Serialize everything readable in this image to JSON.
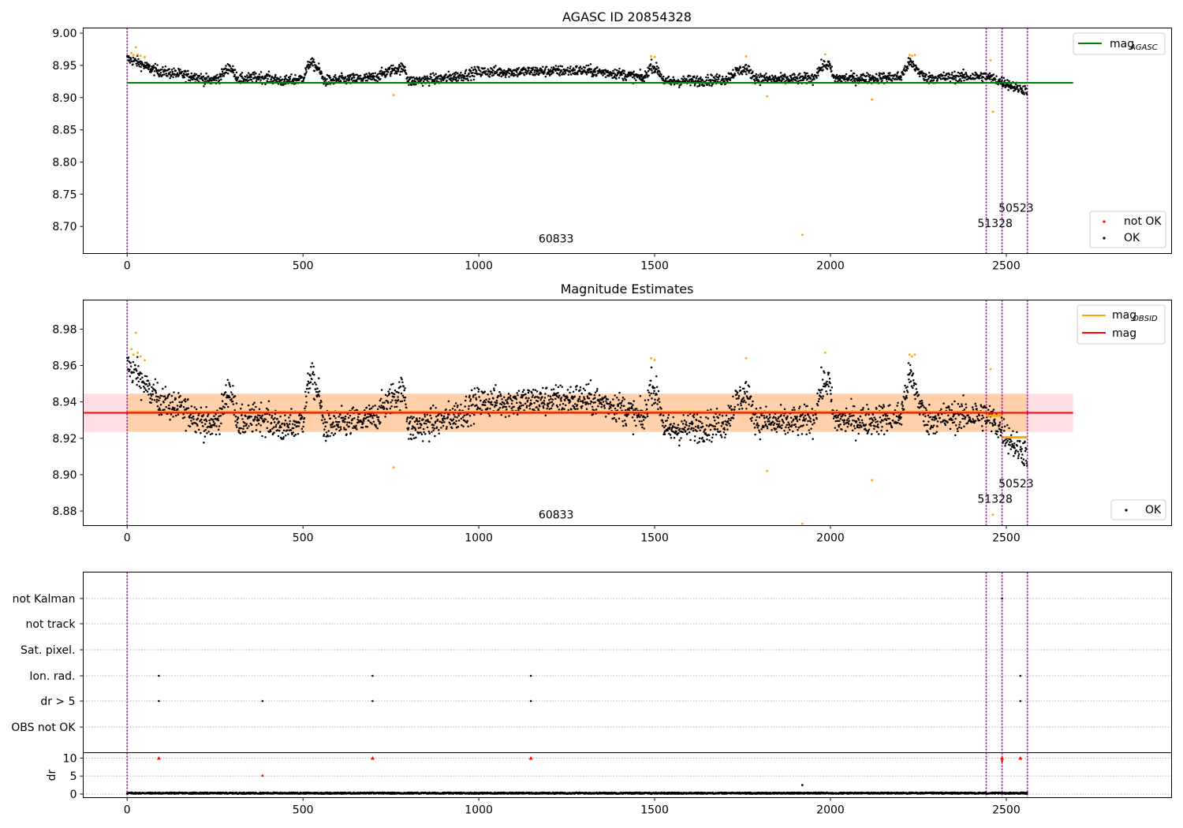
{
  "chart_data": [
    {
      "type": "scatter",
      "title": "AGASC ID 20854328",
      "xlim": [
        -125,
        2970
      ],
      "ylim": [
        8.658,
        9.008
      ],
      "xticks": [
        0,
        500,
        1000,
        1500,
        2000,
        2500
      ],
      "yticks": [
        "8.70",
        "8.75",
        "8.80",
        "8.85",
        "8.90",
        "8.95",
        "9.00"
      ],
      "grid": false,
      "reference_line": {
        "name": "mag_AGASC",
        "value": 8.923,
        "x_range": [
          0,
          2690
        ],
        "color": "#008000"
      },
      "vlines": [
        0,
        2443,
        2488,
        2560
      ],
      "obsid_labels": [
        {
          "text": "60833",
          "x": 1220,
          "y": 8.675
        },
        {
          "text": "51328",
          "x": 2468,
          "y": 8.699
        },
        {
          "text": "50523",
          "x": 2528,
          "y": 8.723
        }
      ],
      "legends": [
        {
          "placement": "upper-right",
          "entries": [
            {
              "label": "mag",
              "sub": "AGASC",
              "kind": "line",
              "color": "#008000"
            }
          ]
        },
        {
          "placement": "lower-right",
          "entries": [
            {
              "label": "not OK",
              "kind": "dot",
              "color": "#ff0000"
            },
            {
              "label": "OK",
              "kind": "dot",
              "color": "#000000"
            }
          ]
        }
      ],
      "outliers": [
        {
          "x": 12,
          "y": 8.969
        },
        {
          "x": 18,
          "y": 8.966
        },
        {
          "x": 25,
          "y": 8.978
        },
        {
          "x": 30,
          "y": 8.967
        },
        {
          "x": 38,
          "y": 8.965
        },
        {
          "x": 50,
          "y": 8.963
        },
        {
          "x": 758,
          "y": 8.904
        },
        {
          "x": 1490,
          "y": 8.964
        },
        {
          "x": 1500,
          "y": 8.963
        },
        {
          "x": 1760,
          "y": 8.964
        },
        {
          "x": 1820,
          "y": 8.902
        },
        {
          "x": 1920,
          "y": 8.687
        },
        {
          "x": 1985,
          "y": 8.967
        },
        {
          "x": 2118,
          "y": 8.897
        },
        {
          "x": 2225,
          "y": 8.966
        },
        {
          "x": 2232,
          "y": 8.965
        },
        {
          "x": 2240,
          "y": 8.966
        },
        {
          "x": 2455,
          "y": 8.958
        },
        {
          "x": 2462,
          "y": 8.878
        }
      ],
      "series_profile": [
        [
          0,
          8.96
        ],
        [
          30,
          8.955
        ],
        [
          60,
          8.946
        ],
        [
          100,
          8.94
        ],
        [
          150,
          8.936
        ],
        [
          200,
          8.932
        ],
        [
          230,
          8.926
        ],
        [
          260,
          8.93
        ],
        [
          290,
          8.948
        ],
        [
          320,
          8.928
        ],
        [
          380,
          8.932
        ],
        [
          450,
          8.925
        ],
        [
          500,
          8.93
        ],
        [
          520,
          8.955
        ],
        [
          545,
          8.944
        ],
        [
          560,
          8.926
        ],
        [
          650,
          8.929
        ],
        [
          700,
          8.931
        ],
        [
          760,
          8.944
        ],
        [
          790,
          8.946
        ],
        [
          800,
          8.925
        ],
        [
          900,
          8.93
        ],
        [
          950,
          8.934
        ],
        [
          1000,
          8.94
        ],
        [
          1100,
          8.94
        ],
        [
          1200,
          8.941
        ],
        [
          1300,
          8.942
        ],
        [
          1400,
          8.937
        ],
        [
          1470,
          8.93
        ],
        [
          1490,
          8.95
        ],
        [
          1510,
          8.942
        ],
        [
          1530,
          8.924
        ],
        [
          1600,
          8.926
        ],
        [
          1700,
          8.928
        ],
        [
          1730,
          8.94
        ],
        [
          1760,
          8.945
        ],
        [
          1790,
          8.93
        ],
        [
          1850,
          8.928
        ],
        [
          1950,
          8.93
        ],
        [
          1975,
          8.948
        ],
        [
          1995,
          8.952
        ],
        [
          2010,
          8.93
        ],
        [
          2100,
          8.93
        ],
        [
          2200,
          8.932
        ],
        [
          2225,
          8.955
        ],
        [
          2245,
          8.945
        ],
        [
          2270,
          8.93
        ],
        [
          2350,
          8.932
        ],
        [
          2440,
          8.933
        ],
        [
          2470,
          8.928
        ],
        [
          2500,
          8.922
        ],
        [
          2530,
          8.915
        ],
        [
          2560,
          8.912
        ]
      ],
      "series_noise": 0.0075,
      "series_count": 2560
    },
    {
      "type": "scatter",
      "title": "Magnitude Estimates",
      "xlim": [
        -125,
        2970
      ],
      "ylim": [
        8.872,
        8.996
      ],
      "xticks": [
        0,
        500,
        1000,
        1500,
        2000,
        2500
      ],
      "yticks": [
        "8.88",
        "8.90",
        "8.92",
        "8.94",
        "8.96",
        "8.98"
      ],
      "grid": false,
      "mean_line": {
        "name": "mag",
        "value": 8.934,
        "x_range": [
          -125,
          2690
        ],
        "color": "#ff0000"
      },
      "band": {
        "low": 8.9235,
        "high": 8.9445,
        "x_range": [
          -125,
          2690
        ],
        "color": "#ffc0c8"
      },
      "obsid_band": {
        "low": 8.9235,
        "high": 8.9445,
        "x_range": [
          0,
          2560
        ],
        "color": "#ffa500"
      },
      "obsid_mag_segments": [
        {
          "x": [
            0,
            2443
          ],
          "y": 8.9345
        },
        {
          "x": [
            2443,
            2488
          ],
          "y": 8.9325
        },
        {
          "x": [
            2488,
            2560
          ],
          "y": 8.9205
        }
      ],
      "vlines": [
        0,
        2443,
        2488,
        2560
      ],
      "obsid_labels": [
        {
          "text": "60833",
          "x": 1220,
          "y": 8.876
        },
        {
          "text": "51328",
          "x": 2468,
          "y": 8.8845
        },
        {
          "text": "50523",
          "x": 2528,
          "y": 8.893
        }
      ],
      "legends": [
        {
          "placement": "upper-right",
          "entries": [
            {
              "label": "mag",
              "sub": "OBSID",
              "kind": "line",
              "color": "#ffa500"
            },
            {
              "label": "mag",
              "kind": "line",
              "color": "#ff0000"
            }
          ]
        },
        {
          "placement": "lower-right",
          "entries": [
            {
              "label": "OK",
              "kind": "dot",
              "color": "#000000"
            }
          ]
        }
      ]
    },
    {
      "type": "scatter",
      "title": "",
      "xlim": [
        -125,
        2970
      ],
      "categories": [
        "not Kalman",
        "not track",
        "Sat. pixel.",
        "Ion. rad.",
        "dr > 5",
        "OBS not OK"
      ],
      "grid": true,
      "vlines": [
        0,
        2443,
        2488,
        2560
      ],
      "flag_points": [
        {
          "category": "not Kalman",
          "x": [
            2488
          ]
        },
        {
          "category": "Ion. rad.",
          "x": [
            90,
            698,
            1148,
            2540
          ]
        },
        {
          "category": "dr > 5",
          "x": [
            90,
            385,
            698,
            1148,
            2540
          ]
        }
      ]
    },
    {
      "type": "scatter",
      "title": "",
      "xlim": [
        -125,
        2970
      ],
      "ylim": [
        -1,
        11.5
      ],
      "xticks": [
        0,
        500,
        1000,
        1500,
        2000,
        2500
      ],
      "yticks": [
        "0",
        "5",
        "10"
      ],
      "ylabel": "dr",
      "grid": true,
      "vlines": [
        0,
        2443,
        2488,
        2560
      ],
      "capped_points": [
        {
          "x": 90,
          "y": 10
        },
        {
          "x": 698,
          "y": 10
        },
        {
          "x": 1148,
          "y": 10
        },
        {
          "x": 2488,
          "y": 10
        },
        {
          "x": 2540,
          "y": 10
        }
      ],
      "high_points": [
        {
          "x": 385,
          "y": 5.1
        },
        {
          "x": 2488,
          "y": 9.2
        },
        {
          "x": 1920,
          "y": 2.5
        }
      ],
      "baseline": {
        "mean": 0.25,
        "spread": 0.35,
        "count": 2560
      }
    }
  ]
}
